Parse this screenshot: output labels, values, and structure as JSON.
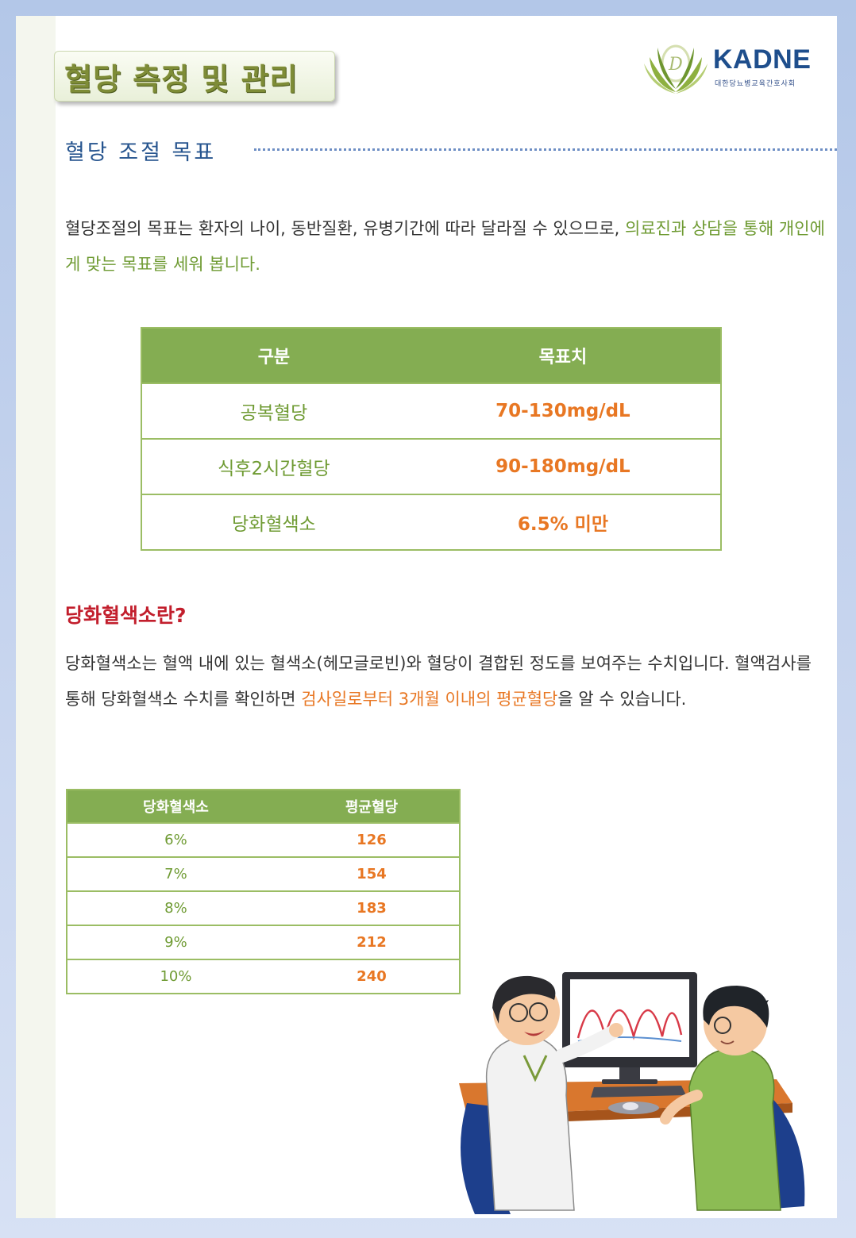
{
  "header": {
    "title": "혈당 측정 및 관리",
    "logo_name": "KADNE",
    "logo_subtitle": "대한당뇨병교육간호사회",
    "logo_icon": "laurel-emblem-icon"
  },
  "section": {
    "heading": "혈당 조절 목표"
  },
  "intro": {
    "part1": "혈당조절의 목표는 환자의 나이, 동반질환, 유병기간에 따라 달라질 수 있으므로, ",
    "highlight": "의료진과 상담을 통해 개인에게 맞는 목표를 세워 봅니다."
  },
  "goal_table": {
    "headers": [
      "구분",
      "목표치"
    ],
    "rows": [
      [
        "공복혈당",
        "70-130mg/dL"
      ],
      [
        "식후2시간혈당",
        "90-180mg/dL"
      ],
      [
        "당화혈색소",
        "6.5% 미만"
      ]
    ]
  },
  "hba1c": {
    "question": "당화혈색소란?",
    "text1": "당화혈색소는 혈액 내에 있는 혈색소(헤모글로빈)와 혈당이 결합된 정도를 보여주는 수치입니다.  혈액검사를 통해 당화혈색소 수치를 확인하면 ",
    "highlight": "검사일로부터 3개월 이내의 평균혈당",
    "text2": "을 알 수 있습니다."
  },
  "avg_table": {
    "headers": [
      "당화혈색소",
      "평균혈당"
    ],
    "rows": [
      [
        "6%",
        "126"
      ],
      [
        "7%",
        "154"
      ],
      [
        "8%",
        "183"
      ],
      [
        "9%",
        "212"
      ],
      [
        "10%",
        "240"
      ]
    ]
  },
  "colors": {
    "accent_green": "#84ad52",
    "text_green": "#6f9b33",
    "orange": "#e87723",
    "red": "#c21e2c",
    "blue": "#27558f"
  }
}
